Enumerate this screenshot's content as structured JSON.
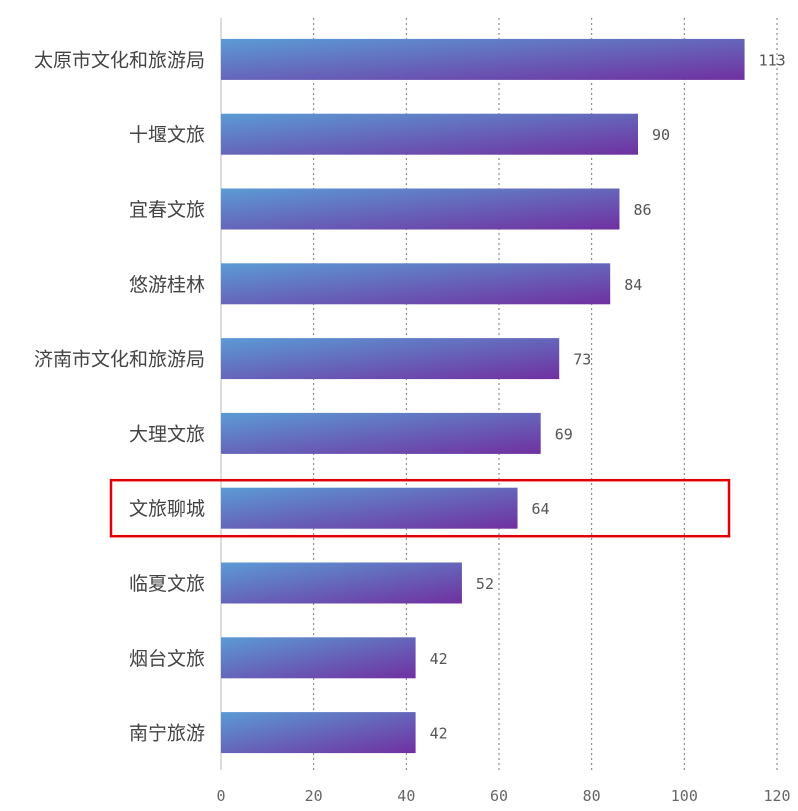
{
  "chart_data": {
    "type": "bar",
    "orientation": "horizontal",
    "categories": [
      "太原市文化和旅游局",
      "十堰文旅",
      "宜春文旅",
      "悠游桂林",
      "济南市文化和旅游局",
      "大理文旅",
      "文旅聊城",
      "临夏文旅",
      "烟台文旅",
      "南宁旅游"
    ],
    "values": [
      113,
      90,
      86,
      84,
      73,
      69,
      64,
      52,
      42,
      42
    ],
    "xlim": [
      0,
      120
    ],
    "xticks": [
      "0",
      "20",
      "40",
      "60",
      "80",
      "100",
      "120"
    ],
    "grid": true,
    "data_labels": true,
    "highlighted_category": "文旅聊城",
    "colors": {
      "bar_start": "#5b9bd5",
      "bar_end": "#7030a0",
      "highlight_border": "#e0000a",
      "grid": "#777777"
    }
  }
}
